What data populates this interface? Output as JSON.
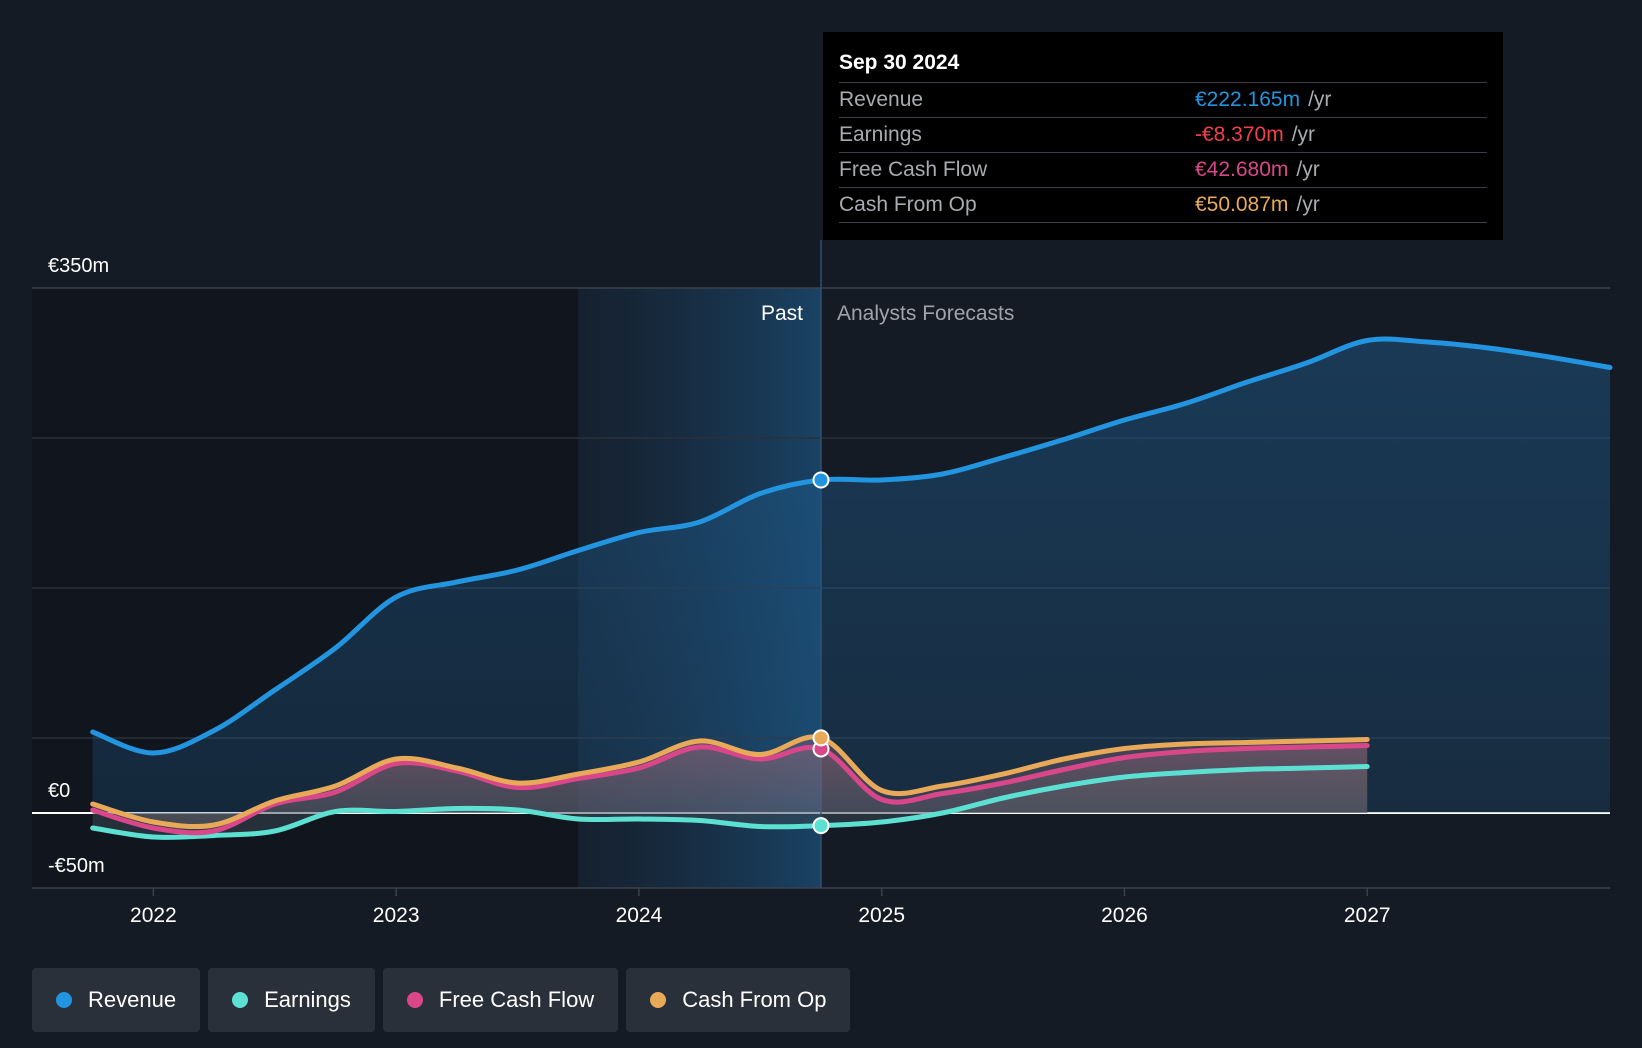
{
  "colors": {
    "background": "#151b25",
    "revenue": "#2394df",
    "earnings": "#5ce0d2",
    "fcf": "#d9478a",
    "cfo": "#e8a959"
  },
  "tooltip": {
    "date": "Sep 30 2024",
    "rows": [
      {
        "label": "Revenue",
        "value": "€222.165m",
        "unit": "/yr",
        "color": "#2394df"
      },
      {
        "label": "Earnings",
        "value": "-€8.370m",
        "unit": "/yr",
        "color": "#f0404a"
      },
      {
        "label": "Free Cash Flow",
        "value": "€42.680m",
        "unit": "/yr",
        "color": "#d9478a"
      },
      {
        "label": "Cash From Op",
        "value": "€50.087m",
        "unit": "/yr",
        "color": "#e8a959"
      }
    ]
  },
  "legend": [
    {
      "label": "Revenue",
      "color": "#2394df"
    },
    {
      "label": "Earnings",
      "color": "#5ce0d2"
    },
    {
      "label": "Free Cash Flow",
      "color": "#d9478a"
    },
    {
      "label": "Cash From Op",
      "color": "#e8a959"
    }
  ],
  "chart_data": {
    "type": "line",
    "y_axis_labels": [
      "€350m",
      "€0",
      "-€50m"
    ],
    "ylim": [
      -50,
      350
    ],
    "xlim": [
      2021.5,
      2028.0
    ],
    "x_ticks": [
      {
        "label": "2022",
        "value": 2022
      },
      {
        "label": "2023",
        "value": 2023
      },
      {
        "label": "2024",
        "value": 2024
      },
      {
        "label": "2025",
        "value": 2025
      },
      {
        "label": "2026",
        "value": 2026
      },
      {
        "label": "2027",
        "value": 2027
      }
    ],
    "past_start": 2023.75,
    "divider_x": 2024.75,
    "past_label": "Past",
    "forecast_label": "Analysts Forecasts",
    "series": [
      {
        "name": "Revenue",
        "key": "revenue",
        "color": "#2394df",
        "x": [
          2021.75,
          2022.0,
          2022.25,
          2022.5,
          2022.75,
          2023.0,
          2023.25,
          2023.5,
          2023.75,
          2024.0,
          2024.25,
          2024.5,
          2024.75,
          2025.0,
          2025.25,
          2025.5,
          2025.75,
          2026.0,
          2026.25,
          2026.5,
          2026.75,
          2027.0,
          2027.25,
          2027.5,
          2027.75,
          2028.0
        ],
        "values": [
          54,
          40,
          55,
          82,
          110,
          144,
          154,
          162,
          175,
          187,
          194,
          213,
          222,
          222,
          226,
          237,
          249,
          262,
          273,
          287,
          300,
          315,
          314,
          310,
          304,
          297
        ]
      },
      {
        "name": "Earnings",
        "key": "earnings",
        "color": "#5ce0d2",
        "x": [
          2021.75,
          2022.0,
          2022.25,
          2022.5,
          2022.75,
          2023.0,
          2023.25,
          2023.5,
          2023.75,
          2024.0,
          2024.25,
          2024.5,
          2024.75,
          2025.0,
          2025.25,
          2025.5,
          2025.75,
          2026.0,
          2026.25,
          2026.5,
          2026.75,
          2027.0
        ],
        "values": [
          -10,
          -16,
          -15,
          -12,
          1,
          1,
          3,
          2,
          -4,
          -4,
          -5,
          -9,
          -8.4,
          -6,
          0,
          10,
          18,
          24,
          27,
          29,
          30,
          31
        ]
      },
      {
        "name": "Free Cash Flow",
        "key": "fcf",
        "color": "#d9478a",
        "x": [
          2021.75,
          2022.0,
          2022.25,
          2022.5,
          2022.75,
          2023.0,
          2023.25,
          2023.5,
          2023.75,
          2024.0,
          2024.25,
          2024.5,
          2024.75,
          2025.0,
          2025.25,
          2025.5,
          2025.75,
          2026.0,
          2026.25,
          2026.5,
          2026.75,
          2027.0
        ],
        "values": [
          2,
          -10,
          -12,
          6,
          14,
          33,
          28,
          17,
          23,
          30,
          44,
          36,
          42.7,
          9,
          13,
          20,
          29,
          37,
          41,
          43,
          44,
          45
        ]
      },
      {
        "name": "Cash From Op",
        "key": "cfo",
        "color": "#e8a959",
        "x": [
          2021.75,
          2022.0,
          2022.25,
          2022.5,
          2022.75,
          2023.0,
          2023.25,
          2023.5,
          2023.75,
          2024.0,
          2024.25,
          2024.5,
          2024.75,
          2025.0,
          2025.25,
          2025.5,
          2025.75,
          2026.0,
          2026.25,
          2026.5,
          2026.75,
          2027.0
        ],
        "values": [
          6,
          -6,
          -8,
          8,
          18,
          36,
          30,
          20,
          26,
          34,
          48,
          39,
          50.1,
          15,
          18,
          26,
          36,
          43,
          46,
          47,
          48,
          49
        ]
      }
    ]
  }
}
